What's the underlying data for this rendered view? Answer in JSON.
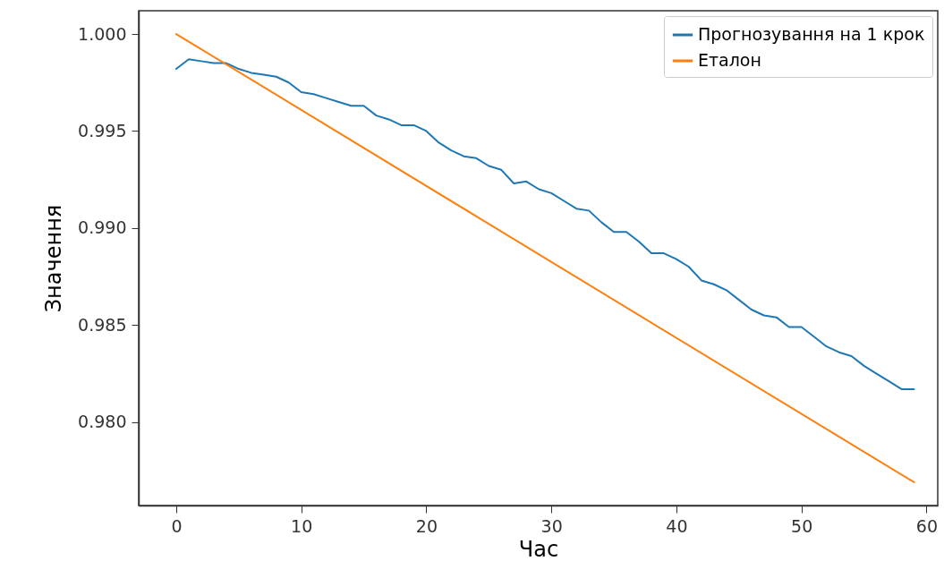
{
  "chart_data": {
    "type": "line",
    "xlabel": "Час",
    "ylabel": "Значення",
    "xlim": [
      -3,
      60.9
    ],
    "ylim": [
      0.9757,
      1.0012
    ],
    "xticks": [
      0,
      10,
      20,
      30,
      40,
      50,
      60
    ],
    "yticks": [
      {
        "value": 0.98,
        "label": "0.980"
      },
      {
        "value": 0.985,
        "label": "0.985"
      },
      {
        "value": 0.99,
        "label": "0.990"
      },
      {
        "value": 0.995,
        "label": "0.995"
      },
      {
        "value": 1.0,
        "label": "1.000"
      }
    ],
    "grid": false,
    "legend": "top right",
    "line_style": "solid",
    "marker": "none",
    "series": [
      {
        "name": "Прогнозування на 1 крок",
        "color": "#1f77b4",
        "x": [
          0,
          1,
          2,
          3,
          4,
          5,
          6,
          7,
          8,
          9,
          10,
          11,
          12,
          13,
          14,
          15,
          16,
          17,
          18,
          19,
          20,
          21,
          22,
          23,
          24,
          25,
          26,
          27,
          28,
          29,
          30,
          31,
          32,
          33,
          34,
          35,
          36,
          37,
          38,
          39,
          40,
          41,
          42,
          43,
          44,
          45,
          46,
          47,
          48,
          49,
          50,
          51,
          52,
          53,
          54,
          55,
          56,
          57,
          58,
          59
        ],
        "values": [
          0.9982,
          0.9987,
          0.9986,
          0.9985,
          0.9985,
          0.9982,
          0.998,
          0.9979,
          0.9978,
          0.9975,
          0.997,
          0.9969,
          0.9967,
          0.9965,
          0.9963,
          0.9963,
          0.9958,
          0.9956,
          0.9953,
          0.9953,
          0.995,
          0.9944,
          0.994,
          0.9937,
          0.9936,
          0.9932,
          0.993,
          0.9923,
          0.9924,
          0.992,
          0.9918,
          0.9914,
          0.991,
          0.9909,
          0.9903,
          0.9898,
          0.9898,
          0.9893,
          0.9887,
          0.9887,
          0.9884,
          0.988,
          0.9873,
          0.9871,
          0.9868,
          0.9863,
          0.9858,
          0.9855,
          0.9854,
          0.9849,
          0.9849,
          0.9844,
          0.9839,
          0.9836,
          0.9834,
          0.9829,
          0.9825,
          0.9821,
          0.9817,
          0.9817
        ]
      },
      {
        "name": "Еталон",
        "color": "#ff7f0e",
        "x": [
          0,
          59
        ],
        "values": [
          1.0,
          0.9769
        ]
      }
    ]
  }
}
